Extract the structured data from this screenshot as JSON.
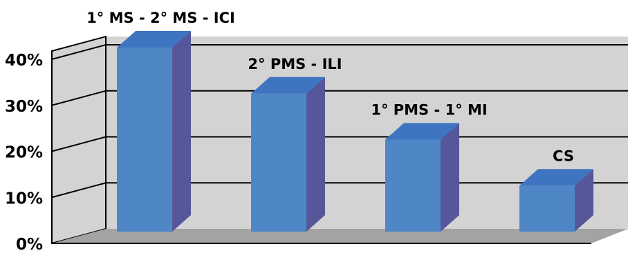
{
  "chart_data": {
    "type": "bar",
    "categories": [
      "",
      "",
      "",
      ""
    ],
    "values": [
      40,
      30,
      20,
      10
    ],
    "data_labels": [
      "1° MS - 2° MS - ICI",
      "2° PMS - ILI",
      "1° PMS - 1° MI",
      "CS"
    ],
    "yticks": [
      "0%",
      "10%",
      "20%",
      "30%",
      "40%"
    ],
    "ylim": [
      0,
      40
    ],
    "title": "",
    "xlabel": "",
    "ylabel": "",
    "grid": true,
    "legend": "none",
    "style": "3d-column",
    "colors": {
      "bar_front": "#4f86c6",
      "bar_side": "#55579a",
      "bar_top": "#3f74c0",
      "wall": "#d3d3d3",
      "floor": "#a3a3a3",
      "grid": "#000000"
    }
  }
}
